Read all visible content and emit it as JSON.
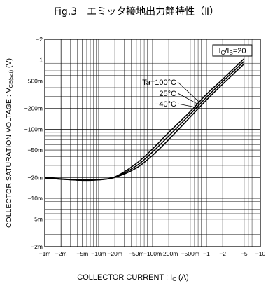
{
  "figure": {
    "title": "Fig.3　エミッタ接地出力静特性（Ⅱ）"
  },
  "chart_data": {
    "type": "line",
    "x_scale": "log",
    "y_scale": "log",
    "xlabel": "COLLECTOR CURRENT : Ic (A)",
    "xlabel_parts": {
      "prefix": "COLLECTOR  CURRENT : I",
      "sub": "C",
      "suffix": " (A)"
    },
    "ylabel": "COLLECTOR SATURATION VOLTAGE : VCE(sat) (V)",
    "ylabel_parts": {
      "prefix": "COLLECTOR SATURATION VOLTAGE : V",
      "sub": "CE(sat)",
      "suffix": " (V)"
    },
    "xlim": [
      -0.001,
      -10
    ],
    "ylim": [
      -0.002,
      -2
    ],
    "x_ticks": [
      {
        "value": 0.001,
        "label": "−1m"
      },
      {
        "value": 0.002,
        "label": "−2m"
      },
      {
        "value": 0.005,
        "label": "−5m"
      },
      {
        "value": 0.01,
        "label": "−10m"
      },
      {
        "value": 0.02,
        "label": "−20m"
      },
      {
        "value": 0.05,
        "label": "−50m"
      },
      {
        "value": 0.1,
        "label": "−100m"
      },
      {
        "value": 0.2,
        "label": "−200m"
      },
      {
        "value": 0.5,
        "label": "−500m"
      },
      {
        "value": 1,
        "label": "−1"
      },
      {
        "value": 2,
        "label": "−2"
      },
      {
        "value": 5,
        "label": "−5"
      },
      {
        "value": 10,
        "label": "−10"
      }
    ],
    "y_ticks": [
      {
        "value": 2,
        "label": "−2"
      },
      {
        "value": 1,
        "label": "−1"
      },
      {
        "value": 0.5,
        "label": "−500m"
      },
      {
        "value": 0.2,
        "label": "−200m"
      },
      {
        "value": 0.1,
        "label": "−100m"
      },
      {
        "value": 0.05,
        "label": "−50m"
      },
      {
        "value": 0.02,
        "label": "−20m"
      },
      {
        "value": 0.01,
        "label": "−10m"
      },
      {
        "value": 0.005,
        "label": "−5m"
      },
      {
        "value": 0.002,
        "label": "−2m"
      }
    ],
    "condition": {
      "prefix": "I",
      "sub1": "C",
      "mid": "/I",
      "sub2": "B",
      "suffix": "=20"
    },
    "grid": true,
    "series": [
      {
        "name": "Ta=100°C",
        "x": [
          -0.001,
          -0.002,
          -0.005,
          -0.01,
          -0.02,
          -0.05,
          -0.1,
          -0.2,
          -0.5,
          -1,
          -2,
          -5
        ],
        "y": [
          -0.02,
          -0.0192,
          -0.0185,
          -0.0188,
          -0.0205,
          -0.032,
          -0.052,
          -0.09,
          -0.18,
          -0.32,
          -0.53,
          -1.05
        ]
      },
      {
        "name": "25°C",
        "x": [
          -0.001,
          -0.002,
          -0.005,
          -0.01,
          -0.02,
          -0.05,
          -0.1,
          -0.2,
          -0.5,
          -1,
          -2,
          -5
        ],
        "y": [
          -0.0198,
          -0.019,
          -0.0183,
          -0.0186,
          -0.0203,
          -0.0295,
          -0.047,
          -0.08,
          -0.165,
          -0.29,
          -0.49,
          -0.96
        ]
      },
      {
        "name": "−40°C",
        "x": [
          -0.001,
          -0.002,
          -0.005,
          -0.01,
          -0.02,
          -0.05,
          -0.1,
          -0.2,
          -0.5,
          -1,
          -2,
          -5
        ],
        "y": [
          -0.0197,
          -0.0189,
          -0.0182,
          -0.0185,
          -0.0201,
          -0.0275,
          -0.042,
          -0.071,
          -0.15,
          -0.265,
          -0.45,
          -0.88
        ]
      }
    ]
  }
}
